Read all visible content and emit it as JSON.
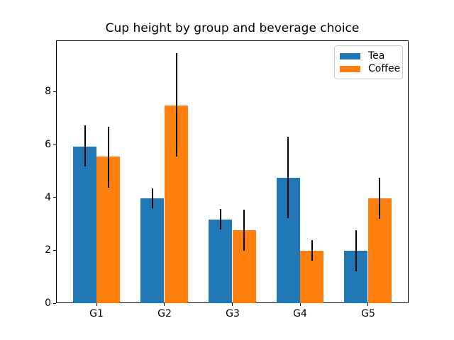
{
  "figure": {
    "background": "#ffffff"
  },
  "chart_data": {
    "type": "bar",
    "title": "Cup height by group and beverage choice",
    "xlabel": "",
    "ylabel": "",
    "categories": [
      "G1",
      "G2",
      "G3",
      "G4",
      "G5"
    ],
    "series": [
      {
        "name": "Tea",
        "color": "#1f77b4",
        "values": [
          5.93,
          3.96,
          3.17,
          4.74,
          1.99
        ],
        "yerr": [
          0.78,
          0.38,
          0.39,
          1.54,
          0.77
        ]
      },
      {
        "name": "Coffee",
        "color": "#ff7f0e",
        "values": [
          5.53,
          7.48,
          2.76,
          1.99,
          3.95
        ],
        "yerr": [
          1.15,
          1.96,
          0.77,
          0.39,
          0.78
        ]
      }
    ],
    "error_bar_color": "#000000",
    "yticks": [
      0,
      2,
      4,
      6,
      8
    ],
    "ylim": [
      0,
      9.92
    ],
    "bar_width": 0.35,
    "grid": false,
    "legend": {
      "position": "upper right",
      "entries": [
        "Tea",
        "Coffee"
      ]
    }
  }
}
